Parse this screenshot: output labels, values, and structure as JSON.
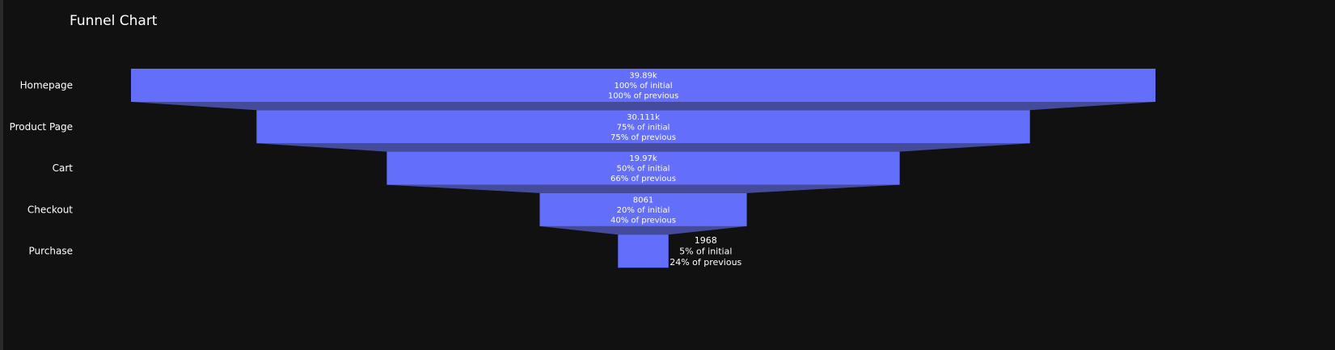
{
  "chart_data": {
    "type": "funnel",
    "title": "Funnel Chart",
    "xlabel": "",
    "ylabel": "",
    "stages": [
      {
        "label": "Homepage",
        "value": 39890,
        "value_text": "39.89k",
        "pct_initial_text": "100% of initial",
        "pct_previous_text": "100% of previous",
        "text_position": "inside"
      },
      {
        "label": "Product Page",
        "value": 30111,
        "value_text": "30.111k",
        "pct_initial_text": "75% of initial",
        "pct_previous_text": "75% of previous",
        "text_position": "inside"
      },
      {
        "label": "Cart",
        "value": 19970,
        "value_text": "19.97k",
        "pct_initial_text": "50% of initial",
        "pct_previous_text": "66% of previous",
        "text_position": "inside"
      },
      {
        "label": "Checkout",
        "value": 8061,
        "value_text": "8061",
        "pct_initial_text": "20% of initial",
        "pct_previous_text": "40% of previous",
        "text_position": "inside"
      },
      {
        "label": "Purchase",
        "value": 1968,
        "value_text": "1968",
        "pct_initial_text": "5% of initial",
        "pct_previous_text": "24% of previous",
        "text_position": "outside"
      }
    ],
    "colors": {
      "bar": "#636efa",
      "connector": "#444b9a",
      "background": "#111111",
      "text": "#ffffff"
    },
    "grid": false,
    "legend": "none"
  }
}
